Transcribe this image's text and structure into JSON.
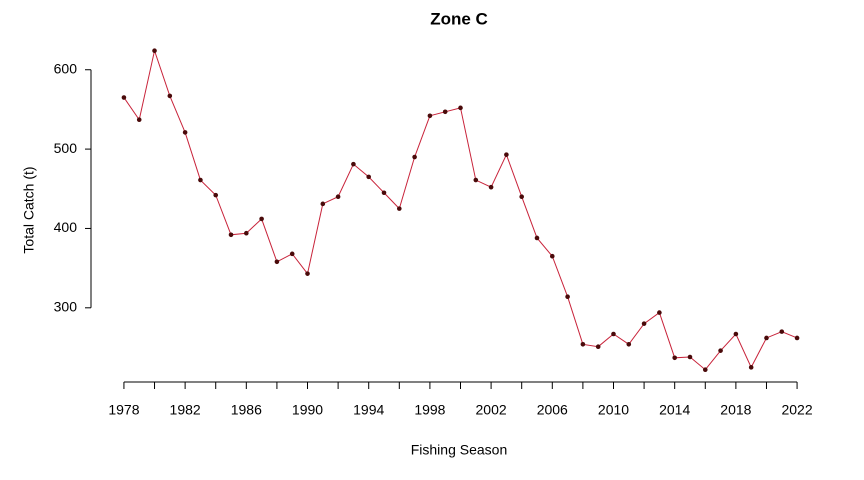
{
  "chart_data": {
    "type": "line",
    "title": "Zone C",
    "x_label": "Fishing Season",
    "y_label": "Total Catch (t)",
    "x": [
      1978,
      1979,
      1980,
      1981,
      1982,
      1983,
      1984,
      1985,
      1986,
      1987,
      1988,
      1989,
      1990,
      1991,
      1992,
      1993,
      1994,
      1995,
      1996,
      1997,
      1998,
      1999,
      2000,
      2001,
      2002,
      2003,
      2004,
      2005,
      2006,
      2007,
      2008,
      2009,
      2010,
      2011,
      2012,
      2013,
      2014,
      2015,
      2016,
      2017,
      2018,
      2019,
      2020,
      2021,
      2022
    ],
    "series": [
      {
        "color": "#c8233a",
        "marker_color": "#4a0a0a",
        "values": [
          565,
          537,
          624,
          567,
          521,
          461,
          442,
          392,
          394,
          412,
          358,
          368,
          343,
          431,
          440,
          481,
          465,
          445,
          425,
          490,
          542,
          547,
          552,
          461,
          452,
          493,
          440,
          388,
          365,
          314,
          254,
          251,
          267,
          254,
          280,
          294,
          237,
          238,
          222,
          246,
          267,
          225,
          262,
          270,
          262
        ]
      }
    ],
    "xlim": [
      1976.24,
      2023.76
    ],
    "ylim": [
      206,
      640
    ],
    "xticks": [
      1978,
      1982,
      1986,
      1990,
      1994,
      1998,
      2002,
      2006,
      2010,
      2014,
      2018,
      2022
    ],
    "xminorticks": [
      1980,
      1984,
      1988,
      1992,
      1996,
      2000,
      2004,
      2008,
      2012,
      2016,
      2020
    ],
    "yticks": [
      300,
      400,
      500,
      600
    ]
  }
}
